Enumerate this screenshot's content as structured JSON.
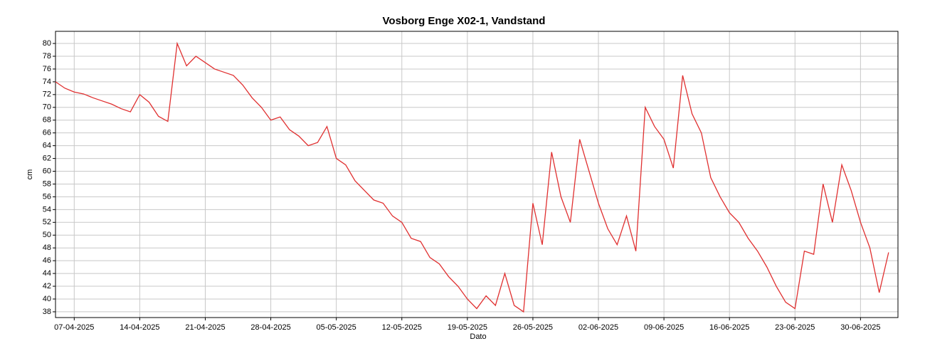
{
  "chart_data": {
    "type": "line",
    "title": "Vosborg Enge X02-1, Vandstand",
    "xlabel": "Dato",
    "ylabel": "cm",
    "x": [
      "05-04-2025",
      "06-04-2025",
      "07-04-2025",
      "08-04-2025",
      "09-04-2025",
      "10-04-2025",
      "11-04-2025",
      "12-04-2025",
      "13-04-2025",
      "14-04-2025",
      "15-04-2025",
      "16-04-2025",
      "17-04-2025",
      "18-04-2025",
      "19-04-2025",
      "20-04-2025",
      "21-04-2025",
      "22-04-2025",
      "23-04-2025",
      "24-04-2025",
      "25-04-2025",
      "26-04-2025",
      "27-04-2025",
      "28-04-2025",
      "29-04-2025",
      "30-04-2025",
      "01-05-2025",
      "02-05-2025",
      "03-05-2025",
      "04-05-2025",
      "05-05-2025",
      "06-05-2025",
      "07-05-2025",
      "08-05-2025",
      "09-05-2025",
      "10-05-2025",
      "11-05-2025",
      "12-05-2025",
      "13-05-2025",
      "14-05-2025",
      "15-05-2025",
      "16-05-2025",
      "17-05-2025",
      "18-05-2025",
      "19-05-2025",
      "20-05-2025",
      "21-05-2025",
      "22-05-2025",
      "23-05-2025",
      "24-05-2025",
      "25-05-2025",
      "26-05-2025",
      "27-05-2025",
      "28-05-2025",
      "29-05-2025",
      "30-05-2025",
      "31-05-2025",
      "01-06-2025",
      "02-06-2025",
      "03-06-2025",
      "04-06-2025",
      "05-06-2025",
      "06-06-2025",
      "07-06-2025",
      "08-06-2025",
      "09-06-2025",
      "10-06-2025",
      "11-06-2025",
      "12-06-2025",
      "13-06-2025",
      "14-06-2025",
      "15-06-2025",
      "16-06-2025",
      "17-06-2025",
      "18-06-2025",
      "19-06-2025",
      "20-06-2025",
      "21-06-2025",
      "22-06-2025",
      "23-06-2025",
      "24-06-2025",
      "25-06-2025",
      "26-06-2025",
      "27-06-2025",
      "28-06-2025",
      "29-06-2025",
      "30-06-2025",
      "01-07-2025",
      "02-07-2025",
      "03-07-2025"
    ],
    "series": [
      {
        "name": "Vandstand",
        "color": "#e03030",
        "values": [
          74,
          73,
          72.4,
          72.1,
          71.5,
          71,
          70.5,
          69.8,
          69.3,
          72,
          70.8,
          68.6,
          67.8,
          80,
          76.5,
          78,
          77,
          76,
          75.5,
          75,
          73.5,
          71.5,
          70,
          68,
          68.5,
          66.5,
          65.5,
          64,
          64.5,
          67,
          62,
          61,
          58.5,
          57,
          55.5,
          55,
          53,
          52,
          49.5,
          49,
          46.5,
          45.5,
          43.5,
          42,
          40,
          38.5,
          40.5,
          39,
          44,
          39,
          38,
          55,
          48.5,
          63,
          56,
          52,
          65,
          60,
          55,
          51,
          48.5,
          53,
          47.5,
          70,
          67,
          65,
          60.5,
          75,
          69,
          66,
          59,
          56,
          53.5,
          52,
          49.5,
          47.5,
          45,
          42,
          39.5,
          38.5,
          47.5,
          47,
          58,
          52,
          61,
          57,
          52,
          48,
          41,
          47.3
        ]
      }
    ],
    "xlim": [
      "05-04-2025",
      "04-07-2025"
    ],
    "xticks": [
      "07-04-2025",
      "14-04-2025",
      "21-04-2025",
      "28-04-2025",
      "05-05-2025",
      "12-05-2025",
      "19-05-2025",
      "26-05-2025",
      "02-06-2025",
      "09-06-2025",
      "16-06-2025",
      "23-06-2025",
      "30-06-2025"
    ],
    "ylim": [
      37.1,
      81.9
    ],
    "yticks": [
      38,
      40,
      42,
      44,
      46,
      48,
      50,
      52,
      54,
      56,
      58,
      60,
      62,
      64,
      66,
      68,
      70,
      72,
      74,
      76,
      78,
      80
    ],
    "grid": true
  }
}
